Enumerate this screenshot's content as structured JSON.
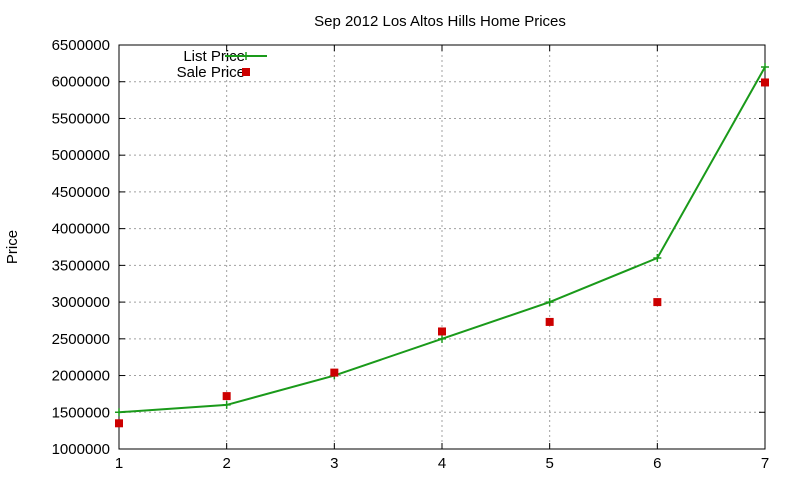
{
  "chart_data": {
    "type": "line",
    "title": "Sep 2012 Los Altos Hills Home Prices",
    "xlabel": "",
    "ylabel": "Price",
    "x": [
      1,
      2,
      3,
      4,
      5,
      6,
      7
    ],
    "xlim": [
      1,
      7
    ],
    "ylim": [
      1000000,
      6500000
    ],
    "xticks": [
      "1",
      "2",
      "3",
      "4",
      "5",
      "6",
      "7"
    ],
    "yticks": [
      "1000000",
      "1500000",
      "2000000",
      "2500000",
      "3000000",
      "3500000",
      "4000000",
      "4500000",
      "5000000",
      "5500000",
      "6000000",
      "6500000"
    ],
    "grid": true,
    "legend_position": "top-left",
    "series": [
      {
        "name": "List Price",
        "style": "line-with-plus-markers",
        "color": "#1a9a1a",
        "values": [
          1500000,
          1600000,
          2000000,
          2500000,
          3000000,
          3600000,
          6200000
        ]
      },
      {
        "name": "Sale Price",
        "style": "square-markers",
        "color": "#cc0000",
        "values": [
          1350000,
          1720000,
          2040000,
          2600000,
          2730000,
          3000000,
          5990000
        ]
      }
    ]
  }
}
